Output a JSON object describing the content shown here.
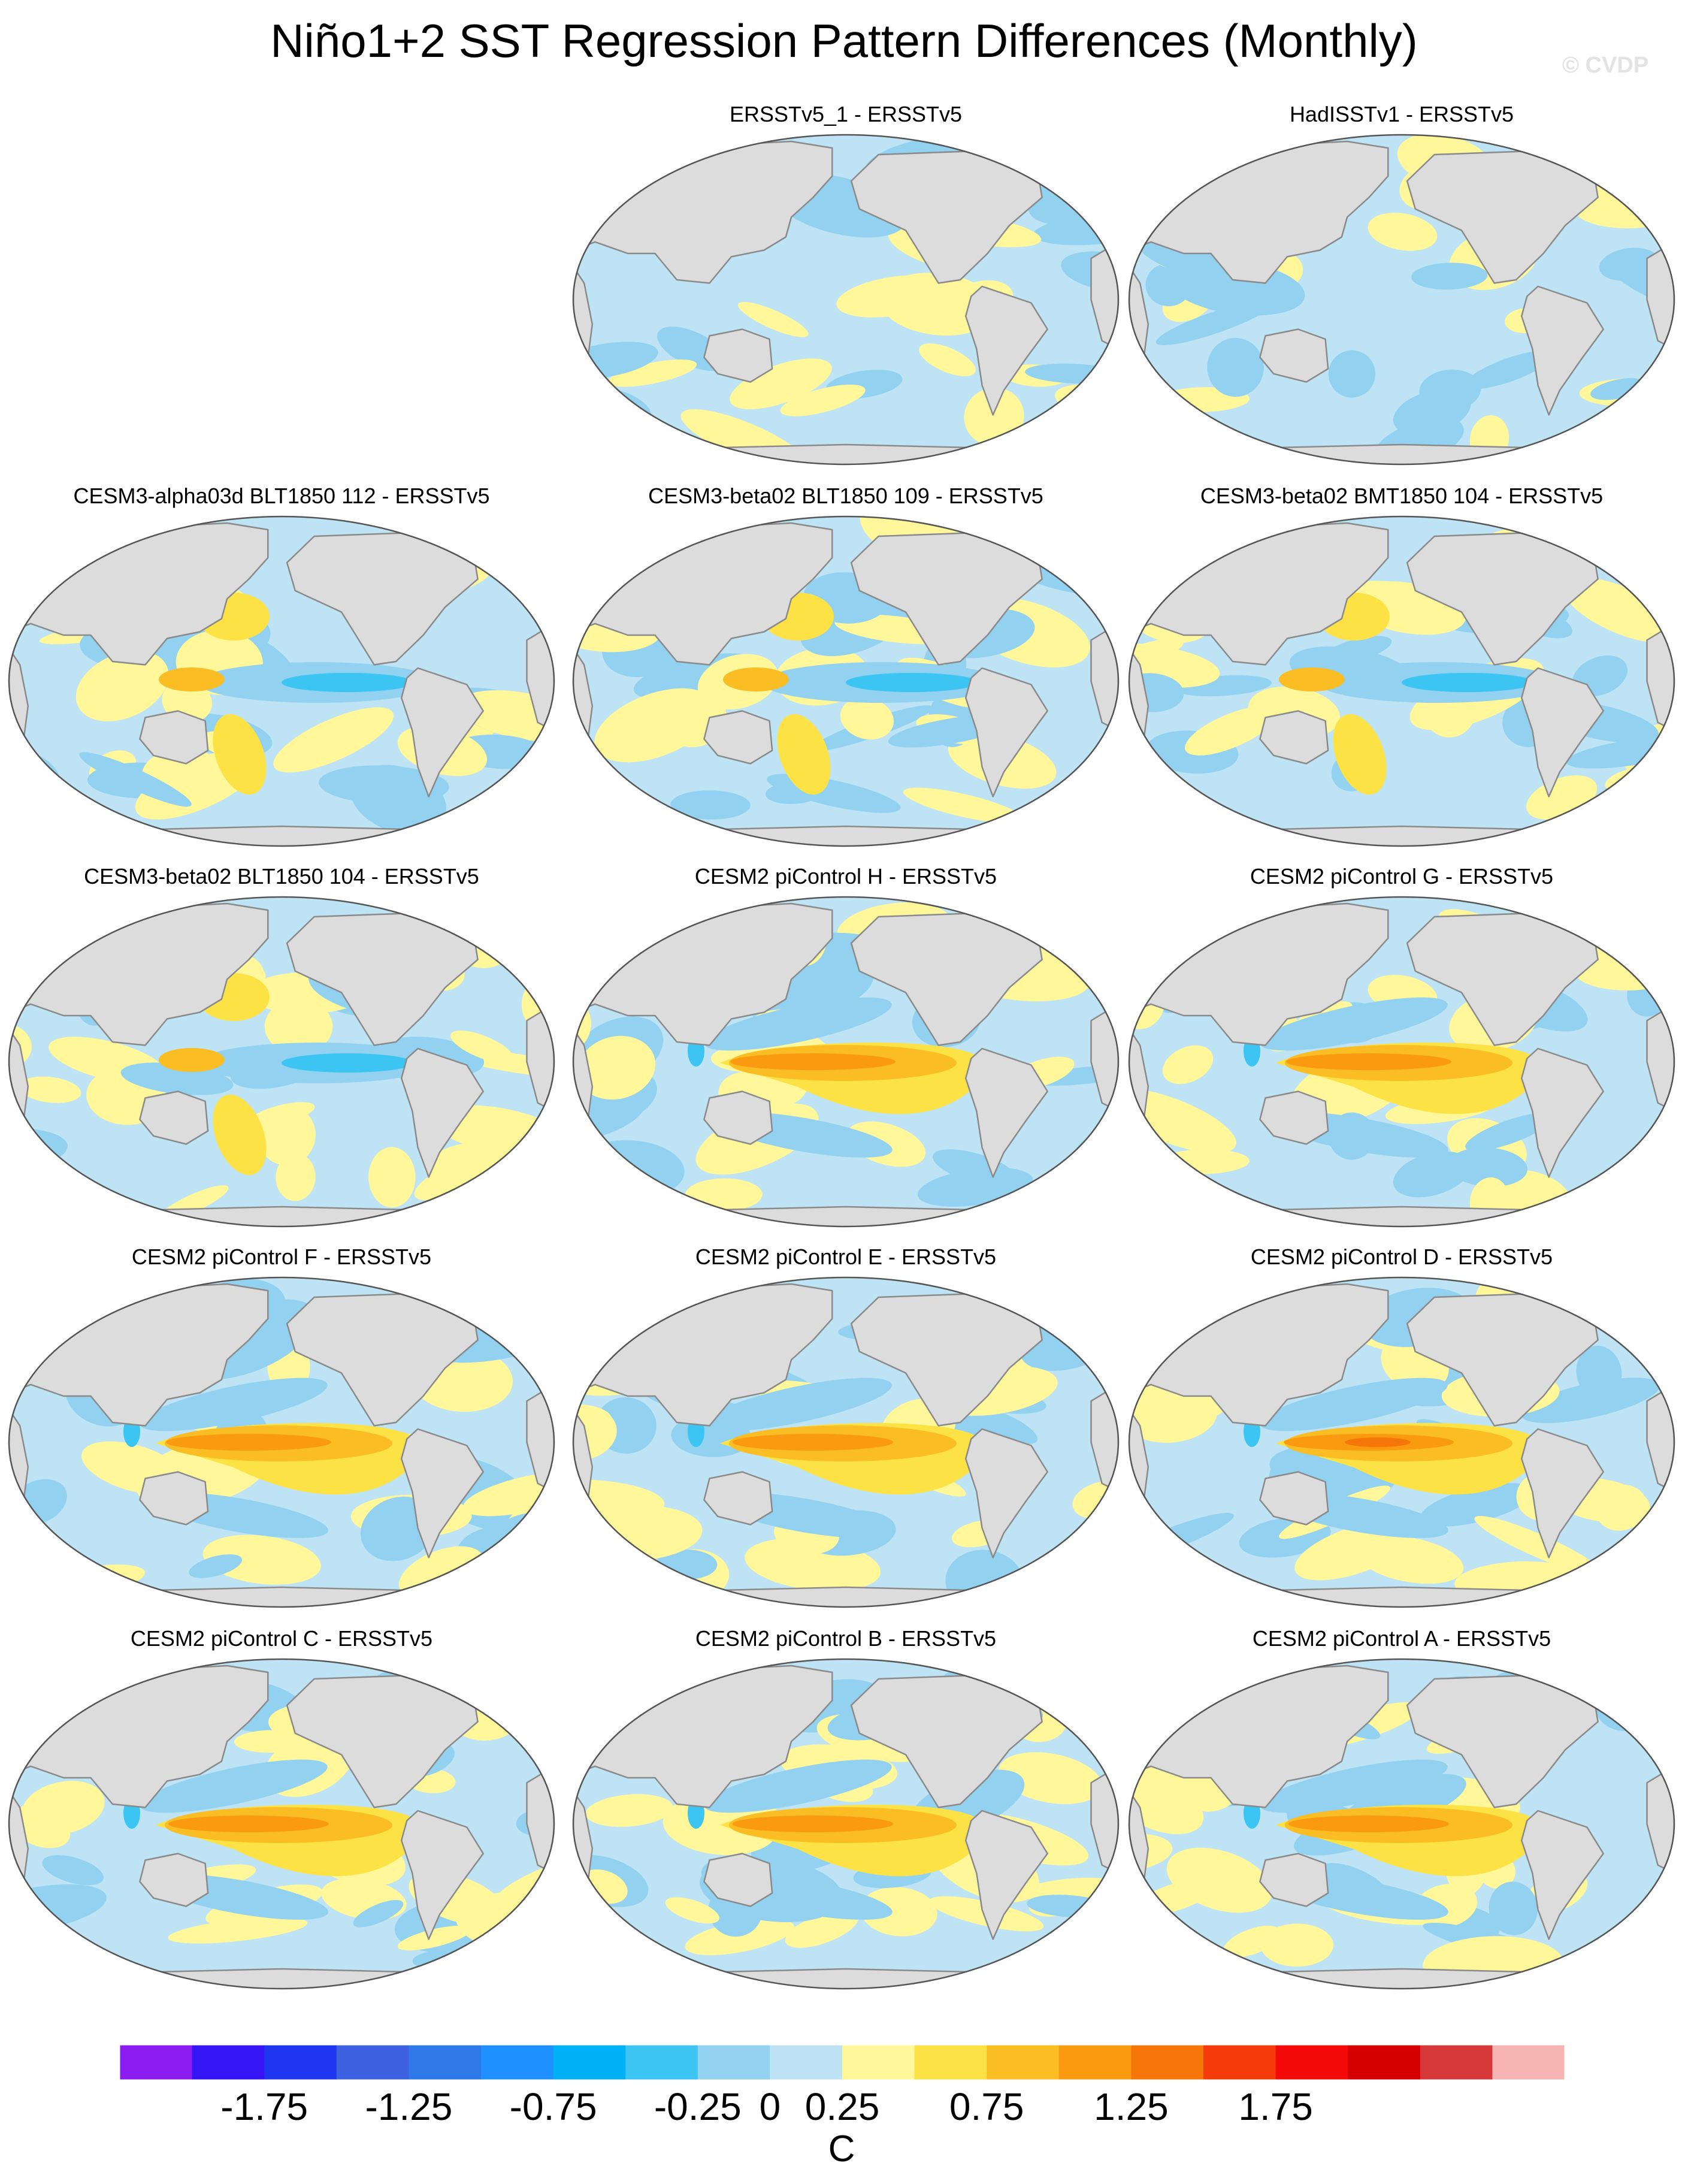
{
  "title": "Niño1+2 SST Regression Pattern Differences (Monthly)",
  "watermark": "© CVDP",
  "chart_data": {
    "type": "heatmap",
    "projection": "Robinson (Pacific-centered)",
    "title": "Niño1+2 SST Regression Pattern Differences (Monthly)",
    "unit": "C",
    "colorbar": {
      "levels": [
        -2.0,
        -1.75,
        -1.5,
        -1.25,
        -1.0,
        -0.75,
        -0.5,
        -0.25,
        0,
        0.25,
        0.5,
        0.75,
        1.0,
        1.25,
        1.5,
        1.75,
        2.0
      ],
      "tick_labels": [
        "-1.75",
        "-1.25",
        "-0.75",
        "-0.25",
        "0",
        "0.25",
        "0.75",
        "1.25",
        "1.75"
      ],
      "tick_values": [
        -1.75,
        -1.25,
        -0.75,
        -0.25,
        0,
        0.25,
        0.75,
        1.25,
        1.75
      ],
      "colors": [
        "#8a1cf0",
        "#3614f5",
        "#1f36f0",
        "#3d61e0",
        "#2f78ea",
        "#1e90ff",
        "#00b2f5",
        "#3cc4f2",
        "#92d1ef",
        "#bde3f4",
        "#fff799",
        "#fde246",
        "#fbbd24",
        "#f99a10",
        "#f7760a",
        "#f53b0a",
        "#f50a0a",
        "#d40000",
        "#d43838",
        "#f7b2b2"
      ]
    },
    "panels": [
      {
        "title": "ERSSTv5_1 - ERSSTv5",
        "row": 0,
        "col": 1,
        "tropical_anomaly": 0.1,
        "pattern": "mixed"
      },
      {
        "title": "HadISSTv1 - ERSSTv5",
        "row": 0,
        "col": 2,
        "tropical_anomaly": 0.1,
        "pattern": "mixed"
      },
      {
        "title": "CESM3-alpha03d BLT1850 112 - ERSSTv5",
        "row": 1,
        "col": 0,
        "tropical_anomaly": -0.4,
        "pattern": "cold-tongue"
      },
      {
        "title": "CESM3-beta02 BLT1850 109 - ERSSTv5",
        "row": 1,
        "col": 1,
        "tropical_anomaly": -0.5,
        "pattern": "cold-tongue"
      },
      {
        "title": "CESM3-beta02 BMT1850 104 - ERSSTv5",
        "row": 1,
        "col": 2,
        "tropical_anomaly": -0.6,
        "pattern": "cold-tongue"
      },
      {
        "title": "CESM3-beta02 BLT1850 104 - ERSSTv5",
        "row": 2,
        "col": 0,
        "tropical_anomaly": -0.7,
        "pattern": "cold-tongue"
      },
      {
        "title": "CESM2 piControl H - ERSSTv5",
        "row": 2,
        "col": 1,
        "tropical_anomaly": 0.7,
        "pattern": "warm-tongue"
      },
      {
        "title": "CESM2 piControl G - ERSSTv5",
        "row": 2,
        "col": 2,
        "tropical_anomaly": 0.7,
        "pattern": "warm-tongue"
      },
      {
        "title": "CESM2 piControl F - ERSSTv5",
        "row": 3,
        "col": 0,
        "tropical_anomaly": 0.7,
        "pattern": "warm-tongue"
      },
      {
        "title": "CESM2 piControl E - ERSSTv5",
        "row": 3,
        "col": 1,
        "tropical_anomaly": 0.6,
        "pattern": "warm-tongue"
      },
      {
        "title": "CESM2 piControl D - ERSSTv5",
        "row": 3,
        "col": 2,
        "tropical_anomaly": 0.8,
        "pattern": "warm-tongue"
      },
      {
        "title": "CESM2 piControl C - ERSSTv5",
        "row": 4,
        "col": 0,
        "tropical_anomaly": 0.6,
        "pattern": "warm-tongue"
      },
      {
        "title": "CESM2 piControl B - ERSSTv5",
        "row": 4,
        "col": 1,
        "tropical_anomaly": 0.6,
        "pattern": "warm-tongue"
      },
      {
        "title": "CESM2 piControl A - ERSSTv5",
        "row": 4,
        "col": 2,
        "tropical_anomaly": 0.6,
        "pattern": "warm-tongue"
      }
    ]
  }
}
